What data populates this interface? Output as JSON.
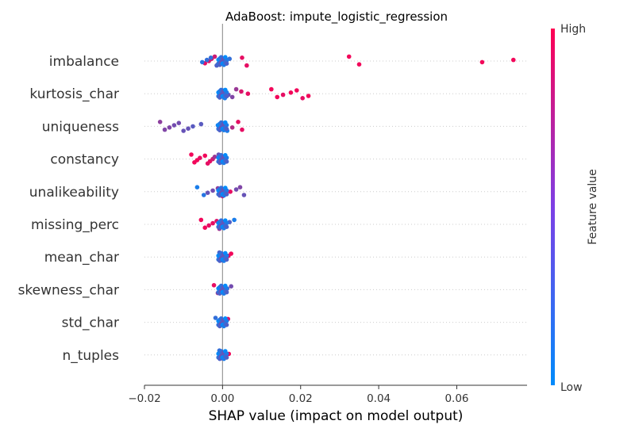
{
  "chart_data": {
    "type": "scatter",
    "subtype": "shap-beeswarm",
    "title": "AdaBoost: impute_logistic_regression",
    "xlabel": "SHAP value (impact on model output)",
    "xlim": [
      -0.02,
      0.078
    ],
    "xticks": [
      "−0.02",
      "0.00",
      "0.02",
      "0.04",
      "0.06"
    ],
    "xtick_values": [
      -0.02,
      0.0,
      0.02,
      0.04,
      0.06
    ],
    "colorbar": {
      "label": "Feature value",
      "high_label": "High",
      "low_label": "Low",
      "low_color": "#008bfb",
      "high_color": "#ff0052"
    },
    "grid": "dotted horizontal per feature",
    "features": [
      {
        "name": "imbalance",
        "points": [
          [
            0.0324,
            0.95
          ],
          [
            0.035,
            0.95
          ],
          [
            0.0665,
            0.95
          ],
          [
            0.0745,
            0.95
          ],
          [
            0.005,
            0.9
          ],
          [
            0.0062,
            0.9
          ],
          [
            -0.0045,
            0.9
          ],
          [
            -0.0035,
            0.85
          ],
          [
            -0.0028,
            0.85
          ],
          [
            -0.002,
            0.8
          ],
          [
            -0.0012,
            0.7
          ],
          [
            -0.0052,
            0.15
          ],
          [
            -0.004,
            0.2
          ],
          [
            -0.003,
            0.2
          ],
          [
            -0.0015,
            0.3
          ],
          [
            0.0,
            0.1
          ],
          [
            0.001,
            0.1
          ],
          [
            0.0018,
            0.2
          ]
        ]
      },
      {
        "name": "kurtosis_char",
        "points": [
          [
            0.0125,
            0.95
          ],
          [
            0.014,
            0.95
          ],
          [
            0.0155,
            0.9
          ],
          [
            0.0175,
            0.95
          ],
          [
            0.019,
            0.95
          ],
          [
            0.0205,
            0.9
          ],
          [
            0.022,
            0.95
          ],
          [
            0.0065,
            0.9
          ],
          [
            0.0048,
            0.85
          ],
          [
            0.0035,
            0.6
          ],
          [
            0.0025,
            0.5
          ],
          [
            0.0015,
            0.4
          ],
          [
            -0.0008,
            0.15
          ],
          [
            0.0,
            0.1
          ],
          [
            0.0006,
            0.1
          ]
        ]
      },
      {
        "name": "uniqueness",
        "points": [
          [
            -0.016,
            0.55
          ],
          [
            -0.0148,
            0.5
          ],
          [
            -0.0136,
            0.5
          ],
          [
            -0.0124,
            0.45
          ],
          [
            -0.0112,
            0.45
          ],
          [
            -0.01,
            0.4
          ],
          [
            -0.0088,
            0.4
          ],
          [
            -0.0076,
            0.35
          ],
          [
            -0.0055,
            0.35
          ],
          [
            0.004,
            0.9
          ],
          [
            0.005,
            0.9
          ],
          [
            0.0025,
            0.7
          ],
          [
            -0.0012,
            0.15
          ],
          [
            0.0,
            0.1
          ],
          [
            0.0012,
            0.1
          ]
        ]
      },
      {
        "name": "constancy",
        "points": [
          [
            -0.008,
            0.95
          ],
          [
            -0.0072,
            0.95
          ],
          [
            -0.0065,
            0.95
          ],
          [
            -0.0058,
            0.9
          ],
          [
            -0.0045,
            0.95
          ],
          [
            -0.0038,
            0.9
          ],
          [
            -0.0032,
            0.9
          ],
          [
            -0.0025,
            0.8
          ],
          [
            -0.002,
            0.6
          ],
          [
            -0.001,
            0.4
          ],
          [
            -0.0003,
            0.1
          ],
          [
            0.0005,
            0.1
          ],
          [
            0.001,
            0.15
          ]
        ]
      },
      {
        "name": "unalikeability",
        "points": [
          [
            -0.0065,
            0.1
          ],
          [
            -0.0048,
            0.15
          ],
          [
            -0.0038,
            0.4
          ],
          [
            -0.0025,
            0.45
          ],
          [
            -0.0012,
            0.55
          ],
          [
            0.0,
            0.85
          ],
          [
            0.001,
            0.9
          ],
          [
            0.002,
            0.9
          ],
          [
            0.0035,
            0.45
          ],
          [
            0.0045,
            0.5
          ],
          [
            0.0055,
            0.4
          ]
        ]
      },
      {
        "name": "missing_perc",
        "points": [
          [
            -0.0055,
            0.95
          ],
          [
            -0.0045,
            0.95
          ],
          [
            -0.0035,
            0.9
          ],
          [
            -0.0025,
            0.9
          ],
          [
            -0.0015,
            0.85
          ],
          [
            -0.0008,
            0.7
          ],
          [
            0.0,
            0.6
          ],
          [
            0.0008,
            0.5
          ],
          [
            0.0018,
            0.3
          ],
          [
            0.003,
            0.1
          ]
        ]
      },
      {
        "name": "mean_char",
        "points": [
          [
            -0.0008,
            0.3
          ],
          [
            0.0,
            0.5
          ],
          [
            0.0008,
            0.7
          ],
          [
            0.0015,
            0.9
          ],
          [
            0.0022,
            0.95
          ]
        ]
      },
      {
        "name": "skewness_char",
        "points": [
          [
            -0.0022,
            0.9
          ],
          [
            -0.0012,
            0.6
          ],
          [
            0.0,
            0.5
          ],
          [
            0.0012,
            0.4
          ],
          [
            0.0022,
            0.45
          ]
        ]
      },
      {
        "name": "std_char",
        "points": [
          [
            -0.0018,
            0.2
          ],
          [
            -0.0008,
            0.3
          ],
          [
            0.0,
            0.5
          ],
          [
            0.0008,
            0.7
          ],
          [
            0.0014,
            0.85
          ]
        ]
      },
      {
        "name": "n_tuples",
        "points": [
          [
            -0.0008,
            0.2
          ],
          [
            0.0,
            0.5
          ],
          [
            0.0008,
            0.8
          ],
          [
            0.0016,
            0.95
          ]
        ]
      }
    ]
  }
}
